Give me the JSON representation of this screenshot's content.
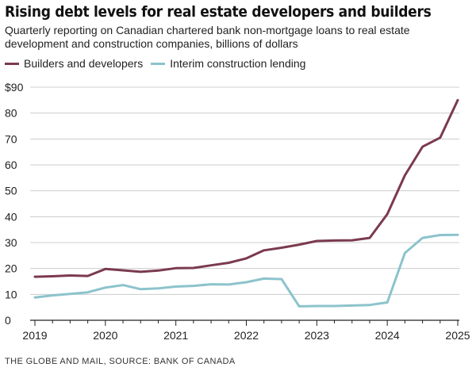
{
  "title": "Rising debt levels for real estate developers and builders",
  "subtitle": "Quarterly reporting on Canadian chartered bank non-mortgage loans to real estate development and construction companies, billions of dollars",
  "source": "THE GLOBE AND MAIL, SOURCE: BANK OF CANADA",
  "colors": {
    "builders": "#7b3a4e",
    "interim": "#8cc3cc",
    "grid": "#cccccc",
    "axis": "#222222"
  },
  "chart_data": {
    "type": "line",
    "title": "Rising debt levels for real estate developers and builders",
    "xlabel": "",
    "ylabel": "",
    "xlim": [
      2019,
      2025
    ],
    "ylim": [
      0,
      90
    ],
    "y_ticks": [
      0,
      10,
      20,
      30,
      40,
      50,
      60,
      70,
      80,
      90
    ],
    "y_tick_labels": [
      "0",
      "10",
      "20",
      "30",
      "40",
      "50",
      "60",
      "70",
      "80",
      "$90"
    ],
    "x_ticks": [
      2019,
      2020,
      2021,
      2022,
      2023,
      2024,
      2025
    ],
    "x_tick_labels": [
      "2019",
      "2020",
      "2021",
      "2022",
      "2023",
      "2024",
      "2025"
    ],
    "grid": "horizontal",
    "legend_position": "top-left",
    "x": [
      2019,
      2019.25,
      2019.5,
      2019.75,
      2020,
      2020.25,
      2020.5,
      2020.75,
      2021,
      2021.25,
      2021.5,
      2021.75,
      2022,
      2022.25,
      2022.5,
      2022.75,
      2023,
      2023.25,
      2023.5,
      2023.75,
      2024,
      2024.25,
      2024.5,
      2024.75,
      2025
    ],
    "series": [
      {
        "name": "Builders and developers",
        "color": "#7b3a4e",
        "values": [
          16.8,
          17.0,
          17.3,
          17.1,
          19.8,
          19.3,
          18.7,
          19.2,
          20.1,
          20.2,
          21.2,
          22.2,
          23.9,
          27.0,
          28.0,
          29.2,
          30.6,
          30.8,
          30.9,
          31.8,
          41.0,
          56.0,
          67.0,
          70.5,
          85.0
        ]
      },
      {
        "name": "Interim construction lending",
        "color": "#8cc3cc",
        "values": [
          8.8,
          9.6,
          10.2,
          10.8,
          12.6,
          13.6,
          12.0,
          12.3,
          13.0,
          13.3,
          13.9,
          13.8,
          14.7,
          16.1,
          15.9,
          5.4,
          5.5,
          5.5,
          5.7,
          5.9,
          6.9,
          26.0,
          31.8,
          32.9,
          33.0
        ]
      }
    ]
  }
}
